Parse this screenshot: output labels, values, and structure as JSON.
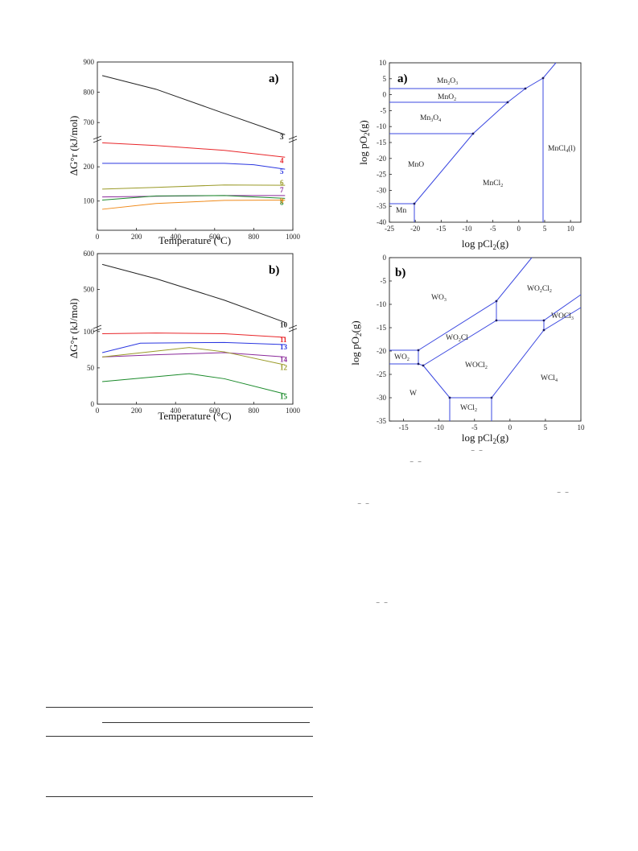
{
  "figure_left": {
    "panel_a": {
      "label": "a)",
      "ylabel": "ΔG°r (kJ/mol)",
      "xlabel": "Temperature (ºC)",
      "xticks": [
        "0",
        "200",
        "400",
        "600",
        "800",
        "1000"
      ],
      "yticks_upper": [
        "700",
        "800",
        "900"
      ],
      "yticks_lower": [
        "100",
        "200"
      ]
    },
    "panel_b": {
      "label": "b)",
      "ylabel": "ΔG°r (kJ/mol)",
      "xlabel": "Temperature (°C)",
      "xticks": [
        "0",
        "200",
        "400",
        "600",
        "800",
        "1000"
      ],
      "yticks_upper": [
        "500",
        "600"
      ],
      "yticks_lower": [
        "0",
        "50",
        "100"
      ]
    }
  },
  "figure_right": {
    "panel_a": {
      "label": "a)",
      "xlabel": "log pCl2(g)",
      "ylabel": "log pO2(g)",
      "xticks": [
        "-25",
        "-20",
        "-15",
        "-10",
        "-5",
        "0",
        "5",
        "10"
      ],
      "yticks": [
        "10",
        "5",
        "0",
        "-5",
        "-10",
        "-15",
        "-20",
        "-25",
        "-30",
        "-35",
        "-40"
      ],
      "regions": [
        "Mn2O3",
        "MnO2",
        "Mn3O4",
        "MnO",
        "MnCl2",
        "MnCl4(l)",
        "Mn"
      ]
    },
    "panel_b": {
      "label": "b)",
      "xlabel": "log pCl2(g)",
      "ylabel": "log pO2(g)",
      "xticks": [
        "-15",
        "-10",
        "-5",
        "0",
        "5",
        "10"
      ],
      "yticks": [
        "0",
        "-5",
        "-10",
        "-15",
        "-20",
        "-25",
        "-30",
        "-35"
      ],
      "regions": [
        "WO3",
        "WO2Cl2",
        "WOCl3",
        "WO2Cl",
        "WO2",
        "WOCl2",
        "WCl4",
        "W",
        "WCl2"
      ]
    }
  },
  "chart_data": [
    {
      "type": "line",
      "panel": "a)",
      "xlabel": "Temperature (ºC)",
      "ylabel": "ΔG°r (kJ/mol)",
      "xlim": [
        0,
        1000
      ],
      "y_break": true,
      "series": [
        {
          "name": "3",
          "color": "#222222",
          "x": [
            25,
            300,
            650,
            960
          ],
          "values": [
            855,
            810,
            730,
            660
          ]
        },
        {
          "name": "4",
          "color": "#e8262a",
          "x": [
            25,
            300,
            650,
            960
          ],
          "values": [
            270,
            262,
            248,
            228
          ]
        },
        {
          "name": "5",
          "color": "#2a36e0",
          "x": [
            25,
            300,
            650,
            800,
            960
          ],
          "values": [
            210,
            210,
            210,
            206,
            193
          ]
        },
        {
          "name": "6",
          "color": "#9a9a28",
          "x": [
            25,
            300,
            650,
            960
          ],
          "values": [
            135,
            140,
            147,
            146
          ]
        },
        {
          "name": "7",
          "color": "#8a2a9a",
          "x": [
            25,
            300,
            650,
            960
          ],
          "values": [
            112,
            114,
            116,
            116
          ]
        },
        {
          "name": "8",
          "color": "#1a8a2a",
          "x": [
            25,
            300,
            650,
            960
          ],
          "values": [
            103,
            115,
            116,
            108
          ]
        },
        {
          "name": "9",
          "color": "#f08a1a",
          "x": [
            25,
            300,
            650,
            960
          ],
          "values": [
            76,
            93,
            102,
            103
          ]
        }
      ]
    },
    {
      "type": "line",
      "panel": "b)",
      "xlabel": "Temperature (°C)",
      "ylabel": "ΔG°r (kJ/mol)",
      "xlim": [
        0,
        1000
      ],
      "y_break": true,
      "series": [
        {
          "name": "10",
          "color": "#222222",
          "x": [
            25,
            300,
            650,
            960
          ],
          "values": [
            570,
            530,
            470,
            408
          ]
        },
        {
          "name": "11",
          "color": "#e8262a",
          "x": [
            25,
            300,
            650,
            960
          ],
          "values": [
            97,
            98,
            97,
            92
          ]
        },
        {
          "name": "13",
          "color": "#2a36e0",
          "x": [
            25,
            220,
            650,
            960
          ],
          "values": [
            71,
            84,
            85,
            82
          ]
        },
        {
          "name": "14",
          "color": "#8a2a9a",
          "x": [
            25,
            300,
            650,
            960
          ],
          "values": [
            65,
            68,
            71,
            65
          ]
        },
        {
          "name": "12",
          "color": "#9a9a28",
          "x": [
            25,
            470,
            650,
            960
          ],
          "values": [
            65,
            78,
            72,
            54
          ]
        },
        {
          "name": "15",
          "color": "#1a8a2a",
          "x": [
            25,
            470,
            650,
            960
          ],
          "values": [
            31,
            42,
            35,
            14
          ]
        }
      ]
    }
  ]
}
